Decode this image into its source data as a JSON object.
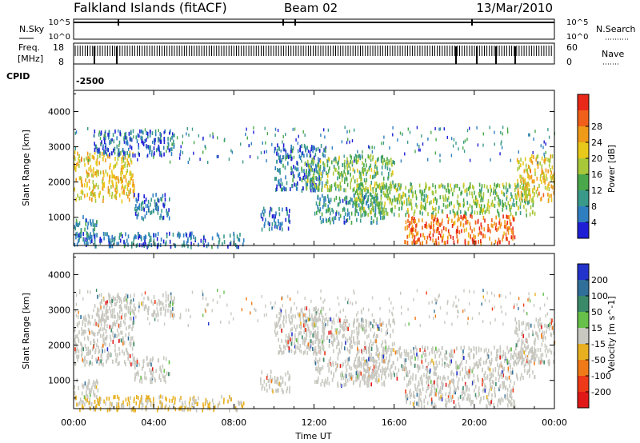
{
  "header": {
    "station": "Falkland Islands (fitACF)",
    "beam": "Beam 02",
    "date": "13/Mar/2010"
  },
  "top_panels": {
    "nsky_label": "N.Sky",
    "nsky_ticks": [
      "10^5",
      "10^0"
    ],
    "nsearch_label": "N.Search",
    "nsearch_ticks": [
      "10^5",
      "10^0"
    ],
    "freq_label": "Freq.",
    "freq_unit": "[MHz]",
    "freq_ticks": [
      "18",
      "8"
    ],
    "nave_label": "Nave",
    "nave_ticks": [
      "60",
      "0"
    ],
    "cpid_label": "CPID",
    "cpid_value": "-2500"
  },
  "chart_data": [
    {
      "type": "heatmap",
      "name": "power",
      "ylabel": "Slant Range [km]",
      "yticks": [
        1000,
        2000,
        3000,
        4000
      ],
      "ylim": [
        200,
        4600
      ],
      "xticks": [
        "00:00",
        "04:00",
        "08:00",
        "12:00",
        "16:00",
        "20:00",
        "00:00"
      ],
      "xlim_hours": [
        0,
        24
      ],
      "colorbar": {
        "label": "Power [dB]",
        "ticks": [
          "4",
          "8",
          "12",
          "16",
          "20",
          "24",
          "28"
        ],
        "colors": [
          "#1f1fd6",
          "#2f7fc0",
          "#3a9a8a",
          "#4aa84a",
          "#a8c83a",
          "#e8c81a",
          "#f09a1a",
          "#f0601a",
          "#e82818"
        ]
      },
      "regions": [
        {
          "t": [
            0.0,
            3.0
          ],
          "r": [
            1500,
            2900
          ],
          "level": 20
        },
        {
          "t": [
            3.0,
            4.8
          ],
          "r": [
            1000,
            1700
          ],
          "level": 6
        },
        {
          "t": [
            0.0,
            1.2
          ],
          "r": [
            500,
            1100
          ],
          "level": 8
        },
        {
          "t": [
            1.0,
            5.0
          ],
          "r": [
            2800,
            3500
          ],
          "level": 5
        },
        {
          "t": [
            9.3,
            10.8
          ],
          "r": [
            700,
            1300
          ],
          "level": 6
        },
        {
          "t": [
            10.0,
            12.5
          ],
          "r": [
            1800,
            3100
          ],
          "level": 6
        },
        {
          "t": [
            11.5,
            16.0
          ],
          "r": [
            1800,
            2800
          ],
          "level": 14
        },
        {
          "t": [
            12.0,
            15.5
          ],
          "r": [
            900,
            1700
          ],
          "level": 8
        },
        {
          "t": [
            14.0,
            23.0
          ],
          "r": [
            1100,
            2000
          ],
          "level": 14
        },
        {
          "t": [
            16.5,
            22.0
          ],
          "r": [
            300,
            1100
          ],
          "level": 26
        },
        {
          "t": [
            22.0,
            24.0
          ],
          "r": [
            1500,
            2800
          ],
          "level": 20
        },
        {
          "t": [
            0.0,
            8.5
          ],
          "r": [
            200,
            600
          ],
          "level": 6
        }
      ]
    },
    {
      "type": "heatmap",
      "name": "velocity",
      "ylabel": "Slant Range [km]",
      "yticks": [
        1000,
        2000,
        3000,
        4000
      ],
      "ylim": [
        200,
        4600
      ],
      "xticks": [
        "00:00",
        "04:00",
        "08:00",
        "12:00",
        "16:00",
        "20:00",
        "00:00"
      ],
      "xlim_hours": [
        0,
        24
      ],
      "xlabel": "Time UT",
      "colorbar": {
        "label": "Velocity [m s^-1]",
        "ticks": [
          "200",
          "100",
          "50",
          "15",
          "-15",
          "-50",
          "-100",
          "-200"
        ],
        "colors": [
          "#2233cc",
          "#2f6f9a",
          "#3a8a6a",
          "#66c04a",
          "#c8c8c0",
          "#e8b020",
          "#f07a18",
          "#ee3a18",
          "#e01818"
        ]
      },
      "regions": [
        {
          "t": [
            0.0,
            3.0
          ],
          "r": [
            1500,
            2900
          ],
          "level": 0
        },
        {
          "t": [
            3.0,
            4.8
          ],
          "r": [
            1000,
            1700
          ],
          "level": 0
        },
        {
          "t": [
            0.0,
            1.2
          ],
          "r": [
            500,
            1100
          ],
          "level": 0
        },
        {
          "t": [
            1.0,
            5.0
          ],
          "r": [
            2800,
            3500
          ],
          "level": 0
        },
        {
          "t": [
            9.3,
            10.8
          ],
          "r": [
            700,
            1300
          ],
          "level": 0
        },
        {
          "t": [
            10.0,
            12.5
          ],
          "r": [
            1800,
            3100
          ],
          "level": 0
        },
        {
          "t": [
            11.5,
            16.0
          ],
          "r": [
            1800,
            2800
          ],
          "level": 0
        },
        {
          "t": [
            12.0,
            15.5
          ],
          "r": [
            900,
            1700
          ],
          "level": 0
        },
        {
          "t": [
            14.0,
            23.0
          ],
          "r": [
            1100,
            2000
          ],
          "level": 0
        },
        {
          "t": [
            16.5,
            22.0
          ],
          "r": [
            300,
            1100
          ],
          "level": 0
        },
        {
          "t": [
            22.0,
            24.0
          ],
          "r": [
            1500,
            2800
          ],
          "level": 0
        },
        {
          "t": [
            0.0,
            8.5
          ],
          "r": [
            200,
            600
          ],
          "level": -30
        }
      ]
    }
  ]
}
